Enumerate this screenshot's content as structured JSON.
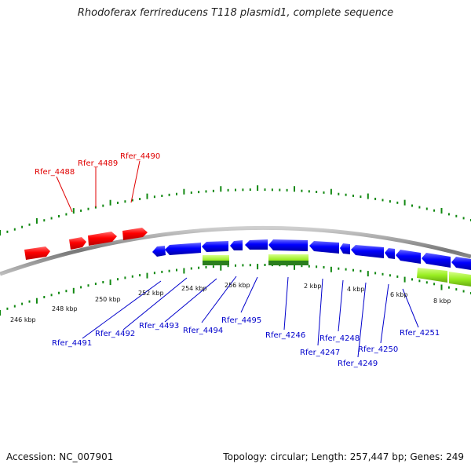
{
  "title": "Rhodoferax ferrireducens T118 plasmid1, complete sequence",
  "footer": {
    "accession": "Accession: NC_007901",
    "summary": "Topology: circular; Length: 257,447 bp; Genes: 249"
  },
  "scale_labels": [
    "246 kbp",
    "248 kbp",
    "250 kbp",
    "252 kbp",
    "254 kbp",
    "256 kbp",
    "2 kbp",
    "4 kbp",
    "6 kbp",
    "8 kbp"
  ],
  "genes_outer": [
    "Rfer_4488",
    "Rfer_4489",
    "Rfer_4490"
  ],
  "genes_inner": [
    "Rfer_4491",
    "Rfer_4492",
    "Rfer_4493",
    "Rfer_4494",
    "Rfer_4495",
    "Rfer_4246",
    "Rfer_4247",
    "Rfer_4248",
    "Rfer_4249",
    "Rfer_4250",
    "Rfer_4251"
  ],
  "colors": {
    "forward_gene": "#ff0000",
    "reverse_gene": "#0000ff",
    "rna_feature": "#99ee22",
    "backbone": "#888888",
    "tick": "#118811",
    "outer_label": "#e00000",
    "inner_label": "#0000cc"
  }
}
